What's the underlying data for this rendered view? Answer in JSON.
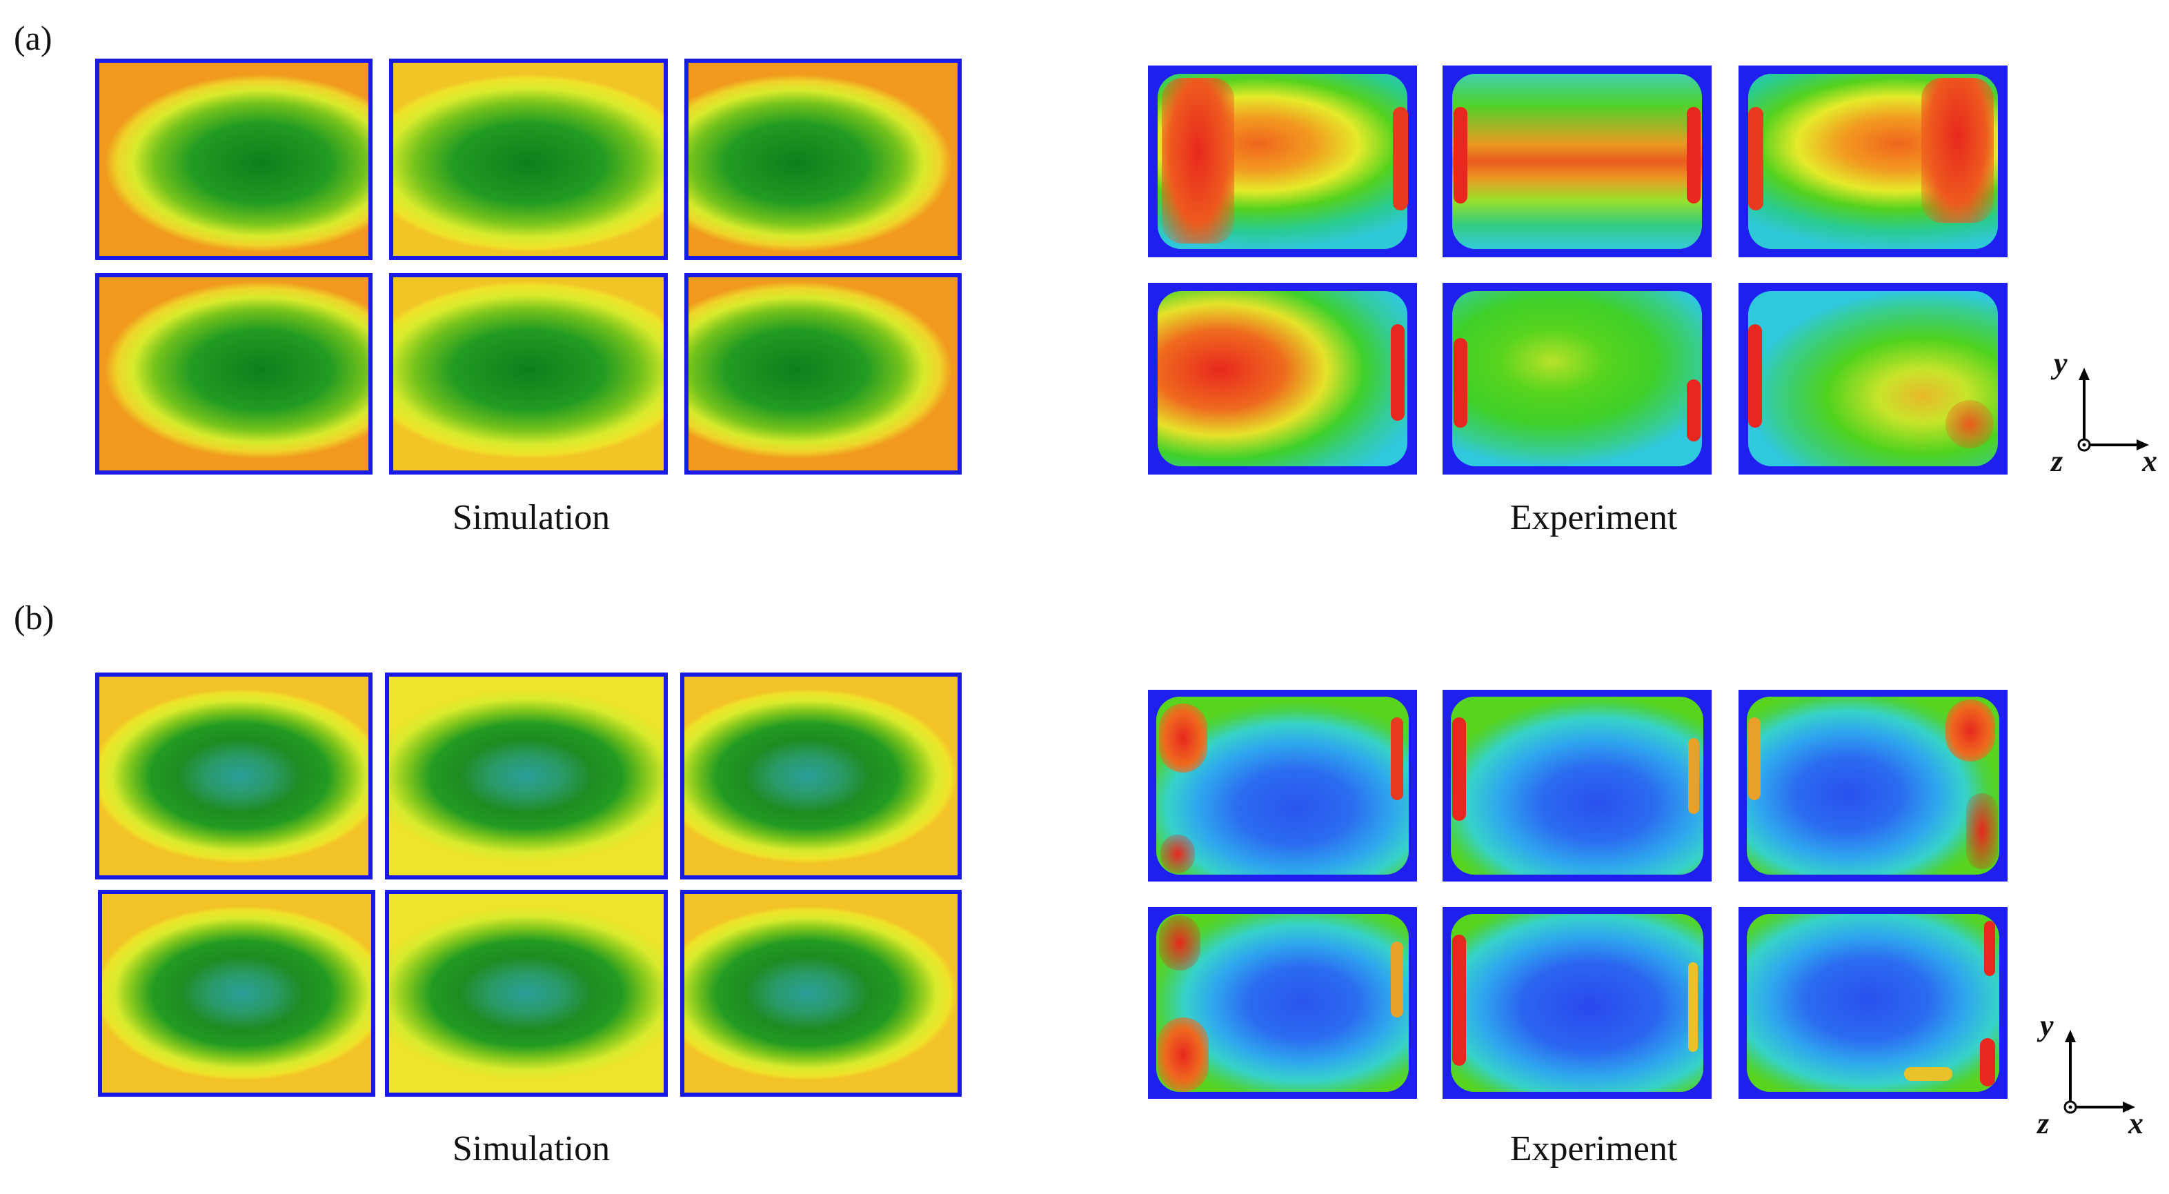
{
  "panel_a": {
    "label": "(a)",
    "sim_caption": "Simulation",
    "exp_caption": "Experiment",
    "axes": {
      "y": "y",
      "x": "x",
      "z": "z"
    }
  },
  "panel_b": {
    "label": "(b)",
    "sim_caption": "Simulation",
    "exp_caption": "Experiment",
    "axes": {
      "y": "y",
      "x": "x",
      "z": "z"
    }
  },
  "colors": {
    "frame": "#1a1ae6",
    "deep_blue": "#1f1ff0",
    "cyan": "#2ec4d8",
    "green": "#1faa1f",
    "yellow": "#e8ef2a",
    "orange": "#f0a020",
    "red": "#e8281e"
  }
}
